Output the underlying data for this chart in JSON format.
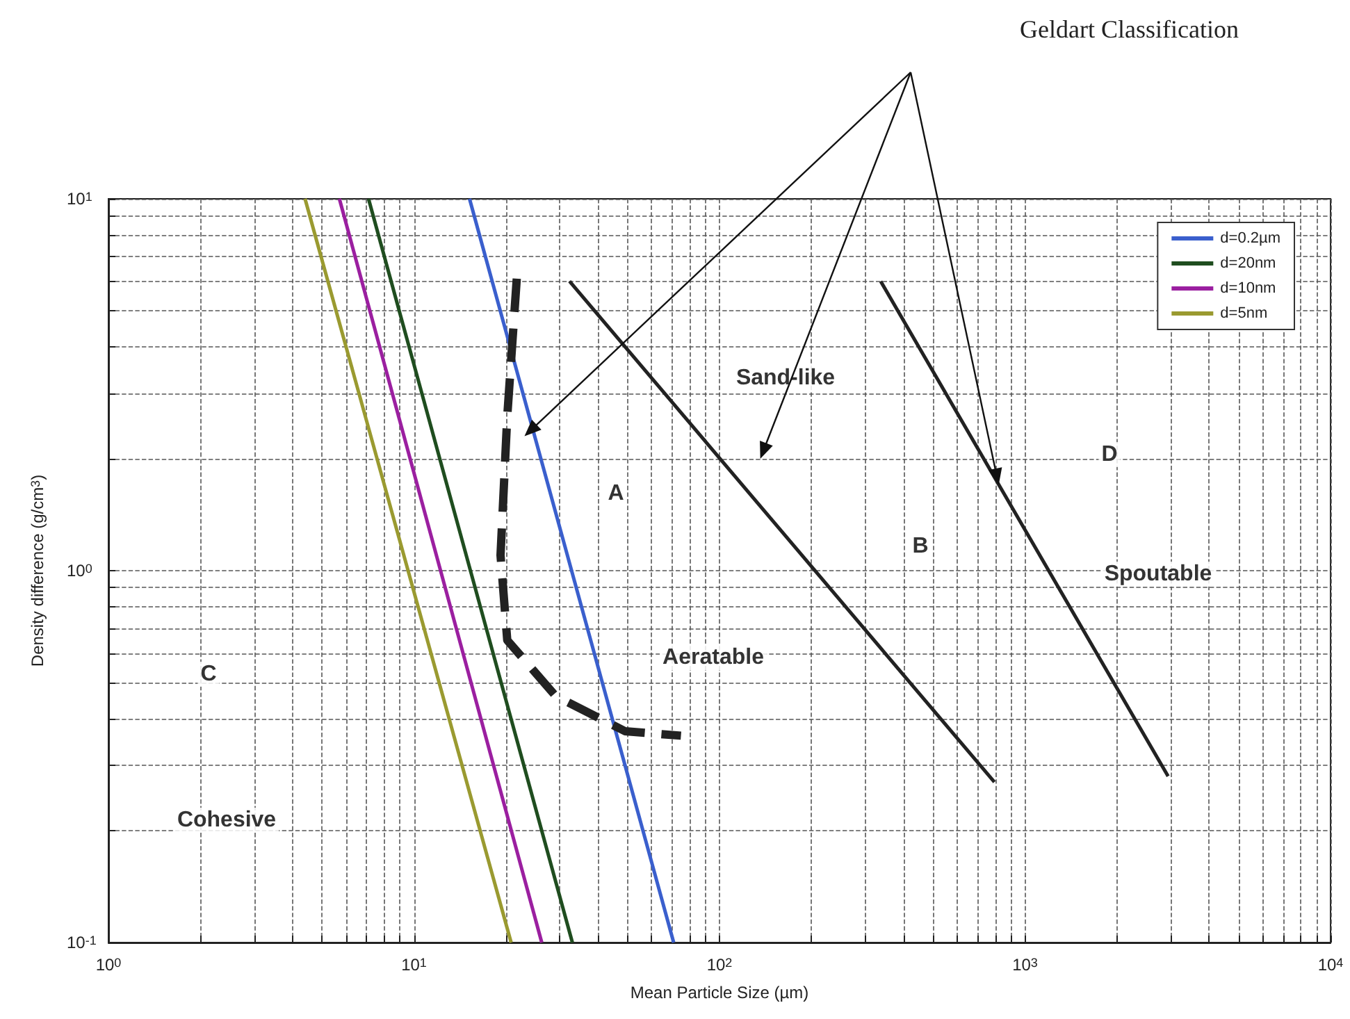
{
  "chart_data": {
    "type": "line",
    "xlabel": "Mean Particle Size (µm)",
    "ylabel": "Density difference (g/cm$^{3}$)",
    "xlim": [
      1,
      10000
    ],
    "ylim": [
      0.1,
      10
    ],
    "xticks": [
      {
        "value": 1,
        "label": "10$^{0}$"
      },
      {
        "value": 2,
        "label": null
      },
      {
        "value": 3,
        "label": null
      },
      {
        "value": 4,
        "label": null
      },
      {
        "value": 5,
        "label": null
      },
      {
        "value": 6,
        "label": null
      },
      {
        "value": 7,
        "label": null
      },
      {
        "value": 8,
        "label": null
      },
      {
        "value": 9,
        "label": null
      },
      {
        "value": 10,
        "label": "10$^{1}$"
      },
      {
        "value": 20,
        "label": null
      },
      {
        "value": 30,
        "label": null
      },
      {
        "value": 40,
        "label": null
      },
      {
        "value": 50,
        "label": null
      },
      {
        "value": 60,
        "label": null
      },
      {
        "value": 70,
        "label": null
      },
      {
        "value": 80,
        "label": null
      },
      {
        "value": 90,
        "label": null
      },
      {
        "value": 100,
        "label": "10$^{2}$"
      },
      {
        "value": 200,
        "label": null
      },
      {
        "value": 300,
        "label": null
      },
      {
        "value": 400,
        "label": null
      },
      {
        "value": 500,
        "label": null
      },
      {
        "value": 600,
        "label": null
      },
      {
        "value": 700,
        "label": null
      },
      {
        "value": 800,
        "label": null
      },
      {
        "value": 900,
        "label": null
      },
      {
        "value": 1000,
        "label": "10$^{3}$"
      },
      {
        "value": 2000,
        "label": null
      },
      {
        "value": 3000,
        "label": null
      },
      {
        "value": 4000,
        "label": null
      },
      {
        "value": 5000,
        "label": null
      },
      {
        "value": 6000,
        "label": null
      },
      {
        "value": 7000,
        "label": null
      },
      {
        "value": 8000,
        "label": null
      },
      {
        "value": 9000,
        "label": null
      },
      {
        "value": 10000,
        "label": "10$^{4}$"
      }
    ],
    "yticks": [
      {
        "value": 0.1,
        "label": "10$^{-1}$"
      },
      {
        "value": 0.2,
        "label": null
      },
      {
        "value": 0.3,
        "label": null
      },
      {
        "value": 0.4,
        "label": null
      },
      {
        "value": 0.5,
        "label": null
      },
      {
        "value": 0.6,
        "label": null
      },
      {
        "value": 0.7,
        "label": null
      },
      {
        "value": 0.8,
        "label": null
      },
      {
        "value": 0.9,
        "label": null
      },
      {
        "value": 1,
        "label": "10$^{0}$"
      },
      {
        "value": 2,
        "label": null
      },
      {
        "value": 3,
        "label": null
      },
      {
        "value": 4,
        "label": null
      },
      {
        "value": 5,
        "label": null
      },
      {
        "value": 6,
        "label": null
      },
      {
        "value": 7,
        "label": null
      },
      {
        "value": 8,
        "label": null
      },
      {
        "value": 9,
        "label": null
      },
      {
        "value": 10,
        "label": "10$^{1}$"
      }
    ],
    "log": "xy",
    "grid": true,
    "legend": "top right",
    "marker": "none",
    "series": [
      {
        "name": "d=0.2µm",
        "color": "#3a5fcd",
        "x": [
          15.2,
          70.8
        ],
        "values": [
          10,
          0.1
        ]
      },
      {
        "name": "d=20nm",
        "color": "#1f4d1f",
        "x": [
          7.1,
          33
        ],
        "values": [
          10,
          0.1
        ]
      },
      {
        "name": "d=10nm",
        "color": "#9b1fa0",
        "x": [
          5.7,
          26.2
        ],
        "values": [
          10,
          0.1
        ]
      },
      {
        "name": "d=5nm",
        "color": "#9a9a30",
        "x": [
          4.4,
          20.8
        ],
        "values": [
          10,
          0.1
        ]
      },
      {
        "color": "#222222",
        "x": [
          32.3,
          794
        ],
        "values": [
          6,
          0.27
        ]
      },
      {
        "color": "#222222",
        "x": [
          337,
          2940
        ],
        "values": [
          6,
          0.28
        ]
      },
      {
        "color": "#222222",
        "line_style": "dashed",
        "x": [
          21.7,
          20.2,
          19.2,
          20.2,
          29.1,
          49.1,
          74.8
        ],
        "values": [
          6.1,
          2.6,
          1.1,
          0.65,
          0.46,
          0.37,
          0.36
        ]
      }
    ],
    "annotations": [
      "Geldart Classification",
      "Sand-like",
      "A",
      "B",
      "D",
      "Spoutable",
      "Aeratable",
      "C",
      "Cohesive"
    ]
  }
}
